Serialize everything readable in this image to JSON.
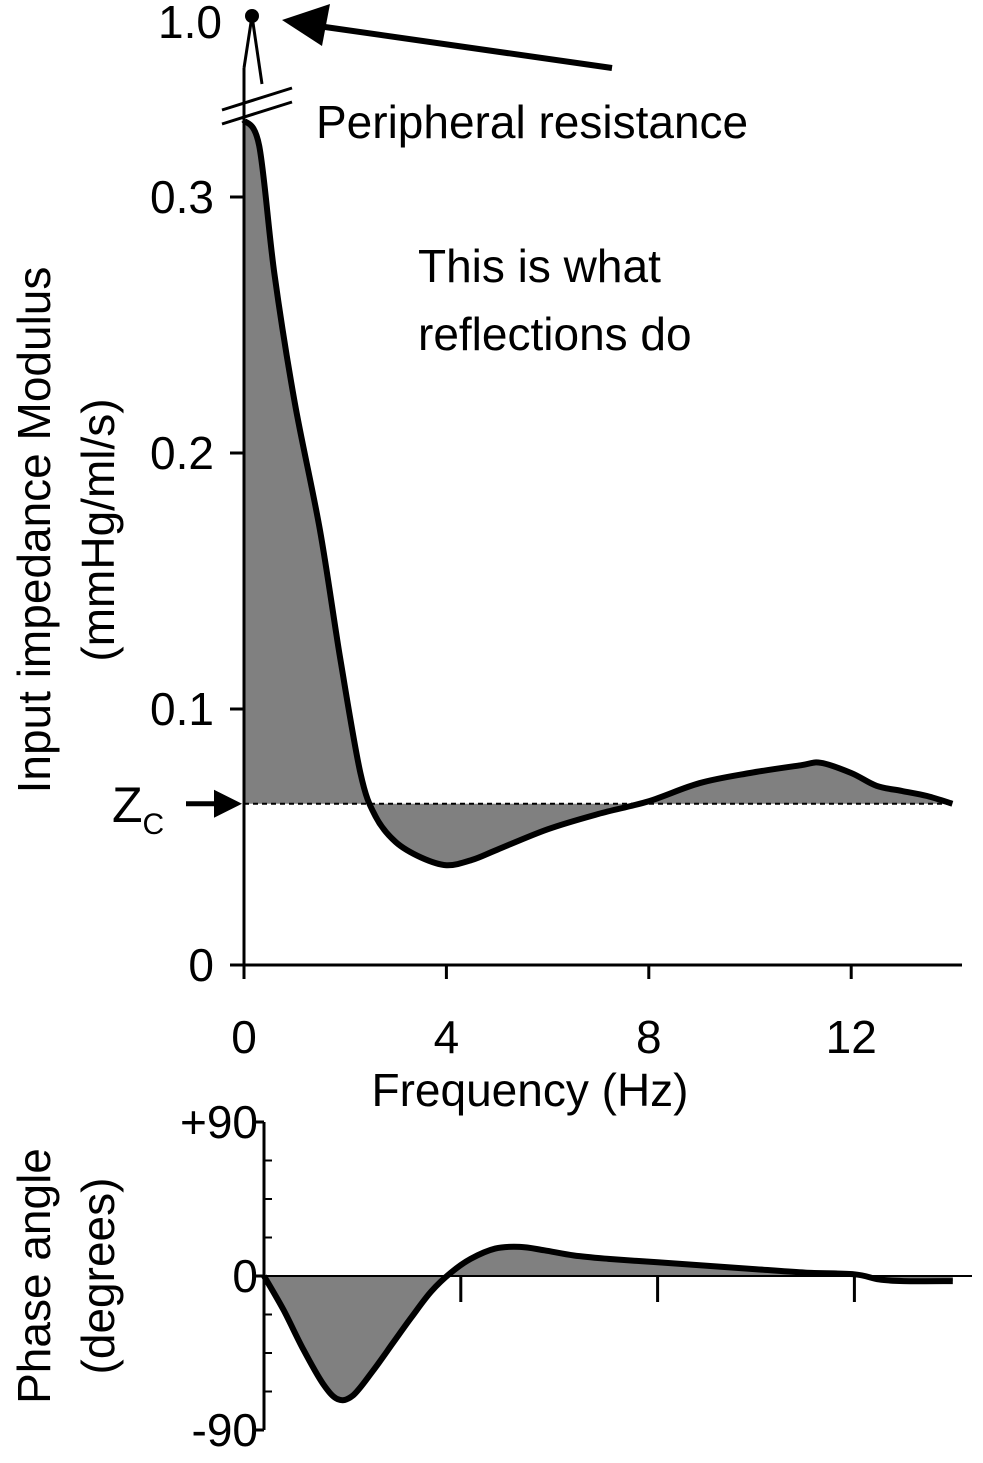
{
  "chart_data": [
    {
      "type": "area",
      "xlabel": "Frequency (Hz)",
      "ylabel_line1": "Input impedance Modulus",
      "ylabel_line2": "(mmHg/ml/s)",
      "xlim": [
        0,
        14
      ],
      "ylim": [
        0,
        0.33
      ],
      "broken_axis_top_value": 1.0,
      "xticks": [
        "0",
        "4",
        "8",
        "12"
      ],
      "xtick_values": [
        0,
        4,
        8,
        12
      ],
      "yticks": [
        "0",
        "0.1",
        "0.2",
        "0.3"
      ],
      "ytick_values": [
        0,
        0.1,
        0.2,
        0.3
      ],
      "ytick_top_label": "1.0",
      "reference_line": {
        "label": "Z",
        "label_sub": "C",
        "value": 0.063
      },
      "series": [
        {
          "x": [
            0,
            0.3,
            0.6,
            1.0,
            1.5,
            1.9,
            2.3,
            2.6,
            3.0,
            3.5,
            4.0,
            4.5,
            5.0,
            6.0,
            7.0,
            8.0,
            9.0,
            10.0,
            11.0,
            11.4,
            12.0,
            12.5,
            13.0,
            13.5,
            14.0
          ],
          "y": [
            0.33,
            0.32,
            0.27,
            0.22,
            0.17,
            0.12,
            0.075,
            0.058,
            0.048,
            0.042,
            0.039,
            0.041,
            0.045,
            0.053,
            0.059,
            0.064,
            0.071,
            0.075,
            0.078,
            0.079,
            0.075,
            0.07,
            0.068,
            0.066,
            0.063
          ]
        }
      ],
      "fill_color": "#808080",
      "annotations": {
        "peripheral_resistance": "Peripheral resistance",
        "reflections_line1": "This is what",
        "reflections_line2": "reflections do"
      }
    },
    {
      "type": "area",
      "xlabel": "",
      "ylabel_line1": "Phase angle",
      "ylabel_line2": "(degrees)",
      "xlim": [
        0,
        14
      ],
      "ylim": [
        -90,
        90
      ],
      "xtick_values": [
        4,
        8,
        12
      ],
      "yticks": [
        "+90",
        "0",
        "-90"
      ],
      "ytick_values": [
        90,
        0,
        -90
      ],
      "series": [
        {
          "x": [
            0,
            0.4,
            0.8,
            1.2,
            1.5,
            1.8,
            2.2,
            2.6,
            3.0,
            3.4,
            3.8,
            4.2,
            4.7,
            5.2,
            5.7,
            6.3,
            7.0,
            8.0,
            9.0,
            10.0,
            11.0,
            12.0,
            12.5,
            13.0,
            14.0
          ],
          "y": [
            0,
            -20,
            -43,
            -63,
            -72,
            -70,
            -56,
            -40,
            -24,
            -9,
            2,
            10,
            16,
            17,
            15,
            12,
            10,
            8,
            6,
            4,
            2,
            1,
            -2,
            -3,
            -3
          ]
        }
      ],
      "fill_color": "#808080"
    }
  ]
}
